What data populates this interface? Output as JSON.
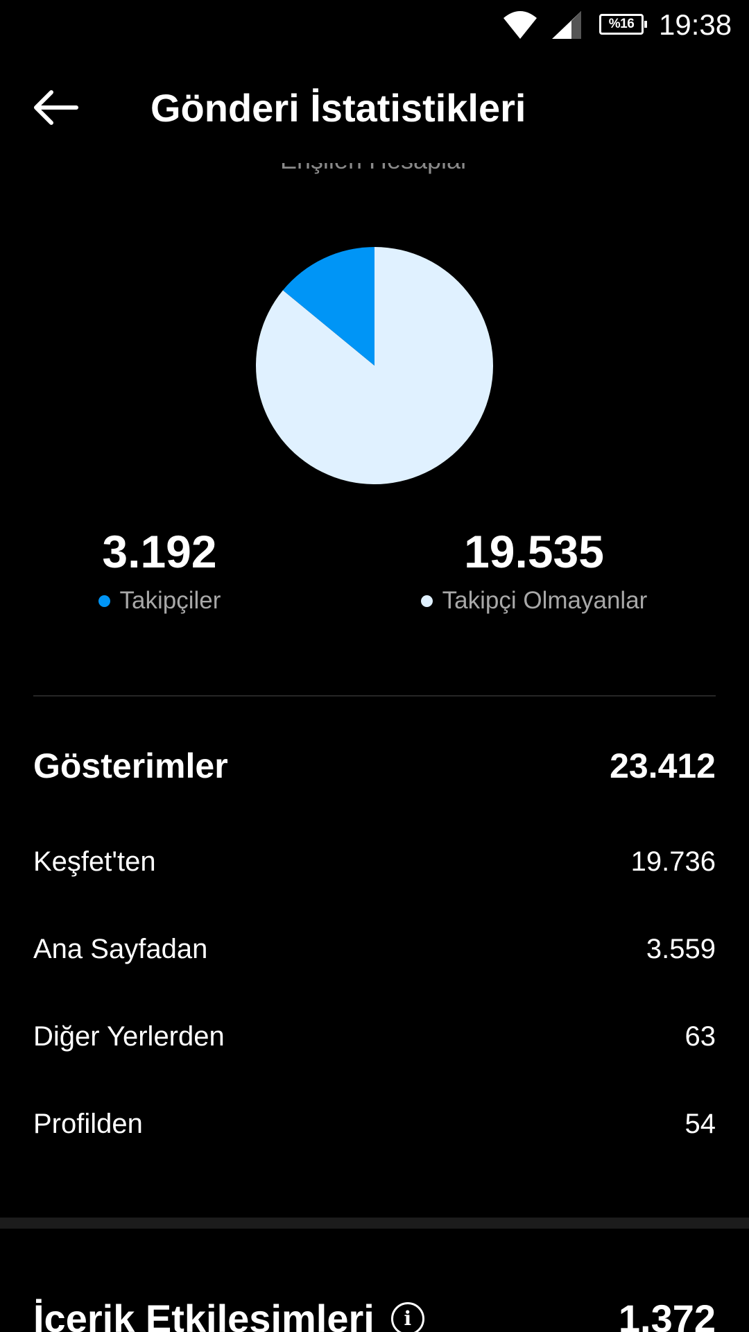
{
  "status_bar": {
    "time": "19:38",
    "battery": "%16"
  },
  "header": {
    "title": "Gönderi İstatistikleri"
  },
  "reach": {
    "subtitle": "Erişilen Hesaplar",
    "followers": {
      "value": "3.192",
      "label": "Takipçiler"
    },
    "non_followers": {
      "value": "19.535",
      "label": "Takipçi Olmayanlar"
    }
  },
  "chart_data": {
    "type": "pie",
    "slices": [
      {
        "name": "Takipçiler",
        "value": 3192,
        "color": "#0095f6"
      },
      {
        "name": "Takipçi Olmayanlar",
        "value": 19535,
        "color": "#e0f1ff"
      }
    ]
  },
  "impressions": {
    "label": "Gösterimler",
    "value": "23.412",
    "rows": [
      {
        "label": "Keşfet'ten",
        "value": "19.736"
      },
      {
        "label": "Ana Sayfadan",
        "value": "3.559"
      },
      {
        "label": "Diğer Yerlerden",
        "value": "63"
      },
      {
        "label": "Profilden",
        "value": "54"
      }
    ]
  },
  "interactions": {
    "label": "İçerik Etkileşimleri",
    "value": "1.372",
    "info_icon": "info-icon"
  },
  "colors": {
    "follower": "#0095f6",
    "non_follower": "#e0f1ff"
  }
}
